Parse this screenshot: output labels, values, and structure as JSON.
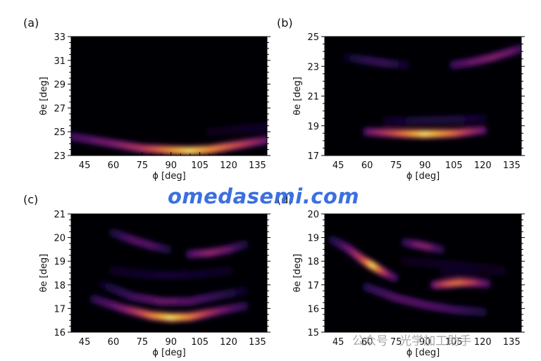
{
  "watermark": "omedasemi.com",
  "watermark2": "公众号 · 光学加工助手",
  "colors": {
    "background": "#000004",
    "watermark": "#3c6fe0"
  },
  "chart_data": [
    {
      "type": "heatmap",
      "panel_label": "(a)",
      "xlabel": "ϕ [deg]",
      "ylabel": "θe [deg]",
      "xlim": [
        38,
        140
      ],
      "ylim": [
        23,
        33
      ],
      "xticks": [
        45,
        60,
        75,
        90,
        105,
        120,
        135
      ],
      "yticks": [
        23,
        25,
        27,
        29,
        31,
        33
      ],
      "colormap": "inferno",
      "bands": [
        {
          "x": [
            38,
            60,
            75,
            90,
            100,
            110,
            125,
            140
          ],
          "y": [
            24.6,
            24.0,
            23.6,
            23.45,
            23.4,
            23.5,
            23.9,
            24.3
          ],
          "intensity": [
            0.25,
            0.4,
            0.55,
            0.8,
            0.95,
            0.8,
            0.6,
            0.35
          ]
        },
        {
          "x": [
            110,
            125,
            140
          ],
          "y": [
            25.0,
            25.2,
            25.4
          ],
          "intensity": [
            0.05,
            0.08,
            0.1
          ]
        }
      ]
    },
    {
      "type": "heatmap",
      "panel_label": "(b)",
      "xlabel": "ϕ [deg]",
      "ylabel": "θe [deg]",
      "xlim": [
        38,
        140
      ],
      "ylim": [
        17,
        25
      ],
      "xticks": [
        45,
        60,
        75,
        90,
        105,
        120,
        135
      ],
      "yticks": [
        17,
        19,
        21,
        23,
        25
      ],
      "colormap": "inferno",
      "bands": [
        {
          "x": [
            60,
            75,
            90,
            105,
            120
          ],
          "y": [
            18.6,
            18.5,
            18.45,
            18.5,
            18.7
          ],
          "intensity": [
            0.35,
            0.65,
            0.95,
            0.7,
            0.35
          ]
        },
        {
          "x": [
            70,
            90,
            105,
            120
          ],
          "y": [
            19.3,
            19.35,
            19.4,
            19.5
          ],
          "intensity": [
            0.1,
            0.15,
            0.15,
            0.1
          ]
        },
        {
          "x": [
            50,
            60,
            70,
            80
          ],
          "y": [
            23.6,
            23.4,
            23.2,
            23.1
          ],
          "intensity": [
            0.1,
            0.2,
            0.22,
            0.1
          ]
        },
        {
          "x": [
            105,
            115,
            125,
            135,
            140
          ],
          "y": [
            23.1,
            23.3,
            23.6,
            24.0,
            24.2
          ],
          "intensity": [
            0.25,
            0.35,
            0.4,
            0.35,
            0.25
          ]
        }
      ]
    },
    {
      "type": "heatmap",
      "panel_label": "(c)",
      "xlabel": "ϕ [deg]",
      "ylabel": "θe [deg]",
      "xlim": [
        38,
        140
      ],
      "ylim": [
        16,
        21
      ],
      "xticks": [
        45,
        60,
        75,
        90,
        105,
        120,
        135
      ],
      "yticks": [
        16,
        17,
        18,
        19,
        20,
        21
      ],
      "colormap": "inferno",
      "bands": [
        {
          "x": [
            50,
            65,
            80,
            90,
            100,
            115,
            128
          ],
          "y": [
            17.4,
            17.0,
            16.7,
            16.62,
            16.65,
            16.9,
            17.1
          ],
          "intensity": [
            0.2,
            0.4,
            0.75,
            0.95,
            0.75,
            0.4,
            0.2
          ]
        },
        {
          "x": [
            55,
            70,
            85,
            100,
            115,
            128
          ],
          "y": [
            18.0,
            17.5,
            17.3,
            17.3,
            17.55,
            17.75
          ],
          "intensity": [
            0.1,
            0.25,
            0.35,
            0.3,
            0.2,
            0.1
          ]
        },
        {
          "x": [
            60,
            75,
            90,
            105,
            120
          ],
          "y": [
            18.6,
            18.45,
            18.4,
            18.45,
            18.6
          ],
          "intensity": [
            0.08,
            0.1,
            0.12,
            0.1,
            0.08
          ]
        },
        {
          "x": [
            60,
            70,
            80,
            88
          ],
          "y": [
            20.2,
            19.9,
            19.65,
            19.5
          ],
          "intensity": [
            0.15,
            0.3,
            0.3,
            0.15
          ]
        },
        {
          "x": [
            100,
            110,
            120,
            128
          ],
          "y": [
            19.3,
            19.35,
            19.5,
            19.7
          ],
          "intensity": [
            0.3,
            0.45,
            0.35,
            0.15
          ]
        }
      ]
    },
    {
      "type": "heatmap",
      "panel_label": "(d)",
      "xlabel": "ϕ [deg]",
      "ylabel": "θe [deg]",
      "xlim": [
        38,
        140
      ],
      "ylim": [
        15,
        20
      ],
      "xticks": [
        45,
        60,
        75,
        90,
        105,
        120,
        135
      ],
      "yticks": [
        15,
        16,
        17,
        18,
        19,
        20
      ],
      "colormap": "inferno",
      "bands": [
        {
          "x": [
            42,
            50,
            58,
            63,
            68,
            74
          ],
          "y": [
            18.9,
            18.55,
            18.05,
            17.8,
            17.55,
            17.3
          ],
          "intensity": [
            0.15,
            0.35,
            0.6,
            0.95,
            0.6,
            0.25
          ]
        },
        {
          "x": [
            60,
            75,
            90,
            105,
            120
          ],
          "y": [
            16.9,
            16.45,
            16.15,
            15.95,
            15.85
          ],
          "intensity": [
            0.2,
            0.3,
            0.3,
            0.25,
            0.15
          ]
        },
        {
          "x": [
            95,
            102,
            108,
            115,
            122
          ],
          "y": [
            17.0,
            17.05,
            17.1,
            17.1,
            17.05
          ],
          "intensity": [
            0.4,
            0.65,
            0.7,
            0.55,
            0.3
          ]
        },
        {
          "x": [
            80,
            86,
            92,
            98
          ],
          "y": [
            18.8,
            18.7,
            18.6,
            18.5
          ],
          "intensity": [
            0.2,
            0.4,
            0.4,
            0.2
          ]
        },
        {
          "x": [
            100,
            115,
            130
          ],
          "y": [
            17.55,
            17.6,
            17.6
          ],
          "intensity": [
            0.08,
            0.1,
            0.08
          ]
        },
        {
          "x": [
            80,
            95,
            110,
            125
          ],
          "y": [
            18.0,
            17.9,
            17.8,
            17.7
          ],
          "intensity": [
            0.06,
            0.08,
            0.08,
            0.06
          ]
        }
      ]
    }
  ]
}
